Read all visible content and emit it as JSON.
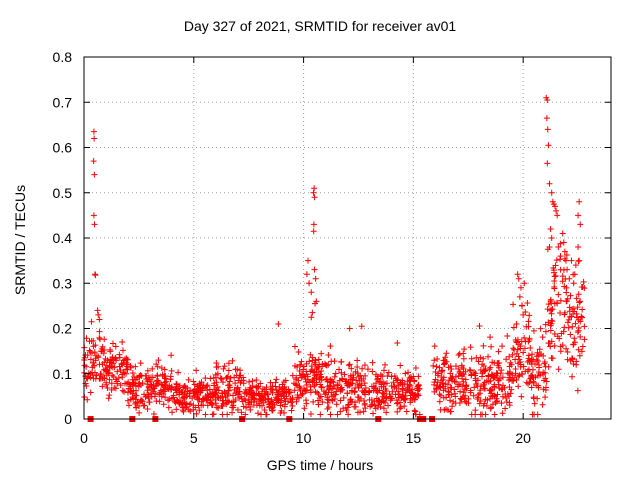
{
  "chart_data": {
    "type": "scatter",
    "title": "Day 327 of 2021, SRMTID for receiver av01",
    "xlabel": "GPS time / hours",
    "ylabel": "SRMTID / TECUs",
    "xlim": [
      0,
      24
    ],
    "ylim": [
      0,
      0.8
    ],
    "xticks": [
      0,
      5,
      10,
      15,
      20
    ],
    "yticks": [
      0,
      0.1,
      0.2,
      0.3,
      0.4,
      0.5,
      0.6,
      0.7,
      0.8
    ],
    "ytick_labels": [
      "0",
      "0.1",
      "0.2",
      "0.3",
      "0.4",
      "0.5",
      "0.6",
      "0.7",
      "0.8"
    ],
    "grid": true,
    "marker": "+",
    "color": "#ff0000",
    "segments": [
      {
        "x_start": 0.0,
        "x_end": 1.0,
        "base": 0.13,
        "spread": 0.06
      },
      {
        "x_start": 1.0,
        "x_end": 2.0,
        "base": 0.11,
        "spread": 0.05
      },
      {
        "x_start": 2.0,
        "x_end": 4.0,
        "base": 0.07,
        "spread": 0.04
      },
      {
        "x_start": 4.0,
        "x_end": 6.0,
        "base": 0.05,
        "spread": 0.035
      },
      {
        "x_start": 6.0,
        "x_end": 7.3,
        "base": 0.06,
        "spread": 0.045
      },
      {
        "x_start": 7.3,
        "x_end": 9.5,
        "base": 0.05,
        "spread": 0.03
      },
      {
        "x_start": 9.5,
        "x_end": 11.0,
        "base": 0.08,
        "spread": 0.06
      },
      {
        "x_start": 11.0,
        "x_end": 13.0,
        "base": 0.07,
        "spread": 0.05
      },
      {
        "x_start": 13.0,
        "x_end": 15.3,
        "base": 0.06,
        "spread": 0.04
      },
      {
        "x_start": 15.9,
        "x_end": 17.5,
        "base": 0.08,
        "spread": 0.05
      },
      {
        "x_start": 17.5,
        "x_end": 19.5,
        "base": 0.08,
        "spread": 0.06
      },
      {
        "x_start": 19.5,
        "x_end": 20.3,
        "base": 0.14,
        "spread": 0.08
      },
      {
        "x_start": 20.3,
        "x_end": 21.1,
        "base": 0.1,
        "spread": 0.07
      },
      {
        "x_start": 21.1,
        "x_end": 22.0,
        "base": 0.24,
        "spread": 0.12
      },
      {
        "x_start": 22.0,
        "x_end": 22.8,
        "base": 0.22,
        "spread": 0.1
      }
    ],
    "outliers": [
      {
        "x": 0.45,
        "y": 0.635
      },
      {
        "x": 0.46,
        "y": 0.62
      },
      {
        "x": 0.44,
        "y": 0.57
      },
      {
        "x": 0.47,
        "y": 0.54
      },
      {
        "x": 0.45,
        "y": 0.45
      },
      {
        "x": 0.48,
        "y": 0.43
      },
      {
        "x": 0.5,
        "y": 0.32
      },
      {
        "x": 0.52,
        "y": 0.318
      },
      {
        "x": 0.62,
        "y": 0.24
      },
      {
        "x": 0.65,
        "y": 0.23
      },
      {
        "x": 0.7,
        "y": 0.22
      },
      {
        "x": 8.85,
        "y": 0.21
      },
      {
        "x": 10.2,
        "y": 0.35
      },
      {
        "x": 10.15,
        "y": 0.32
      },
      {
        "x": 10.25,
        "y": 0.3
      },
      {
        "x": 10.35,
        "y": 0.28
      },
      {
        "x": 10.45,
        "y": 0.5
      },
      {
        "x": 10.48,
        "y": 0.51
      },
      {
        "x": 10.5,
        "y": 0.49
      },
      {
        "x": 10.47,
        "y": 0.43
      },
      {
        "x": 10.46,
        "y": 0.415
      },
      {
        "x": 10.5,
        "y": 0.33
      },
      {
        "x": 10.55,
        "y": 0.31
      },
      {
        "x": 10.52,
        "y": 0.255
      },
      {
        "x": 10.58,
        "y": 0.26
      },
      {
        "x": 10.4,
        "y": 0.235
      },
      {
        "x": 10.35,
        "y": 0.225
      },
      {
        "x": 12.1,
        "y": 0.2
      },
      {
        "x": 12.65,
        "y": 0.205
      },
      {
        "x": 19.75,
        "y": 0.32
      },
      {
        "x": 19.8,
        "y": 0.31
      },
      {
        "x": 19.9,
        "y": 0.29
      },
      {
        "x": 19.85,
        "y": 0.27
      },
      {
        "x": 19.95,
        "y": 0.25
      },
      {
        "x": 20.0,
        "y": 0.23
      },
      {
        "x": 19.7,
        "y": 0.21
      },
      {
        "x": 20.05,
        "y": 0.3
      },
      {
        "x": 21.05,
        "y": 0.71
      },
      {
        "x": 21.1,
        "y": 0.705
      },
      {
        "x": 21.08,
        "y": 0.665
      },
      {
        "x": 21.12,
        "y": 0.64
      },
      {
        "x": 21.15,
        "y": 0.605
      },
      {
        "x": 21.1,
        "y": 0.565
      },
      {
        "x": 21.2,
        "y": 0.52
      },
      {
        "x": 21.3,
        "y": 0.5
      },
      {
        "x": 21.35,
        "y": 0.48
      },
      {
        "x": 21.4,
        "y": 0.475
      },
      {
        "x": 21.45,
        "y": 0.47
      },
      {
        "x": 21.5,
        "y": 0.46
      },
      {
        "x": 21.55,
        "y": 0.45
      },
      {
        "x": 21.25,
        "y": 0.42
      },
      {
        "x": 21.3,
        "y": 0.4
      },
      {
        "x": 21.2,
        "y": 0.38
      },
      {
        "x": 21.6,
        "y": 0.38
      },
      {
        "x": 21.7,
        "y": 0.36
      },
      {
        "x": 21.8,
        "y": 0.41
      },
      {
        "x": 21.85,
        "y": 0.39
      },
      {
        "x": 21.9,
        "y": 0.37
      },
      {
        "x": 21.95,
        "y": 0.35
      },
      {
        "x": 22.0,
        "y": 0.33
      },
      {
        "x": 22.1,
        "y": 0.31
      },
      {
        "x": 22.2,
        "y": 0.35
      },
      {
        "x": 22.3,
        "y": 0.3
      },
      {
        "x": 22.35,
        "y": 0.32
      },
      {
        "x": 22.4,
        "y": 0.34
      },
      {
        "x": 22.5,
        "y": 0.45
      },
      {
        "x": 22.55,
        "y": 0.48
      },
      {
        "x": 22.6,
        "y": 0.43
      },
      {
        "x": 22.5,
        "y": 0.38
      },
      {
        "x": 22.55,
        "y": 0.35
      }
    ],
    "cycle_slip_markers_x": [
      0.3,
      2.2,
      3.25,
      7.2,
      9.35,
      13.4,
      15.3,
      15.45,
      15.85
    ]
  }
}
